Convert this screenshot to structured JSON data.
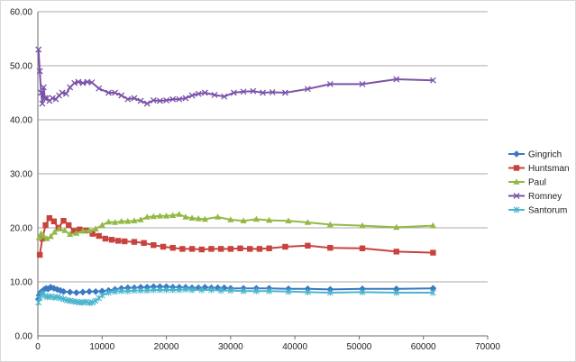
{
  "chart_data": {
    "type": "line",
    "title": "",
    "xlabel": "",
    "ylabel": "",
    "xlim": [
      0,
      70000
    ],
    "ylim": [
      0,
      60
    ],
    "x_ticks": [
      "0",
      "10000",
      "20000",
      "30000",
      "40000",
      "50000",
      "60000",
      "70000"
    ],
    "y_ticks": [
      "0.00",
      "10.00",
      "20.00",
      "30.00",
      "40.00",
      "50.00",
      "60.00"
    ],
    "grid": true,
    "legend_position": "right",
    "series": [
      {
        "name": "Gingrich",
        "color": "#3b78c2",
        "marker": "diamond",
        "x": [
          100,
          200,
          400,
          700,
          1000,
          1300,
          1600,
          2000,
          2500,
          3000,
          3500,
          4000,
          5000,
          6000,
          7000,
          8000,
          9000,
          10000,
          11000,
          12000,
          13000,
          14000,
          15000,
          16000,
          17000,
          18000,
          19000,
          20000,
          21000,
          22000,
          23000,
          24000,
          25000,
          26000,
          27000,
          28000,
          29000,
          30000,
          32000,
          34000,
          36000,
          39000,
          42000,
          45500,
          50500,
          55800,
          61500
        ],
        "y": [
          6.8,
          7.5,
          8.0,
          8.3,
          8.6,
          8.8,
          8.7,
          9.0,
          8.8,
          8.6,
          8.4,
          8.2,
          8.1,
          8.0,
          8.1,
          8.2,
          8.2,
          8.3,
          8.4,
          8.6,
          8.8,
          8.9,
          8.9,
          9.0,
          9.0,
          9.1,
          9.1,
          9.1,
          9.0,
          9.0,
          9.0,
          8.9,
          8.9,
          9.0,
          8.9,
          8.9,
          8.9,
          8.8,
          8.8,
          8.8,
          8.8,
          8.7,
          8.7,
          8.6,
          8.7,
          8.7,
          8.8
        ]
      },
      {
        "name": "Huntsman",
        "color": "#c8433e",
        "marker": "square",
        "x": [
          300,
          700,
          1200,
          1800,
          2500,
          3200,
          4000,
          4800,
          5600,
          6500,
          7500,
          8500,
          9500,
          10500,
          11500,
          12500,
          13500,
          15000,
          16500,
          18000,
          19500,
          21000,
          22500,
          24000,
          25500,
          27000,
          28500,
          30000,
          31500,
          33000,
          34500,
          36000,
          38500,
          42000,
          45500,
          50500,
          55800,
          61500
        ],
        "y": [
          15.0,
          18.0,
          20.5,
          21.8,
          21.2,
          20.0,
          21.3,
          20.5,
          19.4,
          19.7,
          19.5,
          18.9,
          18.5,
          18.0,
          17.8,
          17.6,
          17.5,
          17.4,
          17.2,
          16.8,
          16.5,
          16.3,
          16.1,
          16.1,
          16.0,
          16.1,
          16.1,
          16.1,
          16.2,
          16.1,
          16.1,
          16.2,
          16.5,
          16.7,
          16.3,
          16.2,
          15.6,
          15.4
        ]
      },
      {
        "name": "Paul",
        "color": "#93b944",
        "marker": "triangle",
        "x": [
          200,
          500,
          900,
          1400,
          2000,
          2600,
          3300,
          4200,
          5000,
          6000,
          7000,
          8000,
          9000,
          10000,
          11000,
          12000,
          13000,
          14000,
          15000,
          16000,
          17000,
          18000,
          19000,
          20000,
          21000,
          22000,
          23000,
          24000,
          25000,
          26000,
          28000,
          30000,
          32000,
          34000,
          36000,
          39000,
          42000,
          45500,
          50500,
          55800,
          61500
        ],
        "y": [
          18.2,
          18.9,
          18.5,
          18.0,
          18.4,
          19.2,
          19.8,
          19.5,
          18.8,
          19.0,
          19.4,
          19.5,
          19.8,
          20.5,
          21.1,
          21.0,
          21.2,
          21.2,
          21.3,
          21.5,
          22.0,
          22.1,
          22.2,
          22.2,
          22.3,
          22.5,
          22.0,
          21.8,
          21.7,
          21.6,
          22.0,
          21.5,
          21.3,
          21.6,
          21.4,
          21.3,
          21.0,
          20.6,
          20.4,
          20.1,
          20.4
        ]
      },
      {
        "name": "Romney",
        "color": "#7b52a8",
        "marker": "x",
        "x": [
          100,
          300,
          500,
          700,
          900,
          1100,
          1400,
          1800,
          2300,
          2800,
          3300,
          3800,
          4400,
          5000,
          5700,
          6300,
          7000,
          7700,
          8400,
          9500,
          11000,
          12000,
          13000,
          14000,
          15000,
          16000,
          17000,
          18000,
          19000,
          20000,
          21000,
          22000,
          23000,
          24000,
          25000,
          26000,
          27500,
          29000,
          30500,
          32000,
          33500,
          35000,
          36500,
          38500,
          42000,
          45500,
          50500,
          55800,
          61500
        ],
        "y": [
          53.0,
          49.0,
          45.0,
          43.0,
          46.0,
          44.0,
          44.0,
          43.5,
          44.0,
          43.8,
          44.5,
          45.0,
          44.8,
          46.0,
          46.8,
          47.0,
          46.8,
          47.0,
          46.9,
          45.8,
          45.0,
          45.0,
          44.5,
          43.8,
          44.0,
          43.5,
          43.0,
          43.6,
          43.5,
          43.6,
          43.8,
          43.8,
          44.0,
          44.5,
          44.8,
          45.0,
          44.6,
          44.3,
          45.0,
          45.2,
          45.3,
          45.0,
          45.1,
          45.0,
          45.7,
          46.6,
          46.6,
          47.5,
          47.3
        ]
      },
      {
        "name": "Santorum",
        "color": "#4ab5ce",
        "marker": "asterisk",
        "x": [
          100,
          300,
          500,
          800,
          1100,
          1500,
          2000,
          2500,
          3000,
          3500,
          4000,
          4500,
          5000,
          5500,
          6000,
          6500,
          7000,
          7500,
          8000,
          8500,
          9000,
          9500,
          10000,
          11000,
          12000,
          13000,
          14000,
          15000,
          16000,
          17000,
          18000,
          19000,
          20000,
          21000,
          22000,
          23000,
          24000,
          25500,
          27000,
          28500,
          30000,
          32000,
          34000,
          36000,
          39000,
          42000,
          45500,
          50500,
          55800,
          61500
        ],
        "y": [
          6.2,
          7.0,
          7.6,
          7.9,
          7.4,
          7.2,
          7.3,
          7.1,
          7.2,
          7.0,
          6.8,
          6.6,
          6.5,
          6.4,
          6.3,
          6.2,
          6.2,
          6.3,
          6.1,
          6.2,
          6.5,
          7.0,
          7.5,
          8.0,
          8.2,
          8.3,
          8.3,
          8.4,
          8.4,
          8.4,
          8.5,
          8.5,
          8.5,
          8.5,
          8.5,
          8.6,
          8.5,
          8.5,
          8.5,
          8.4,
          8.4,
          8.3,
          8.3,
          8.3,
          8.2,
          8.1,
          8.0,
          8.1,
          8.0,
          8.0
        ]
      }
    ]
  }
}
